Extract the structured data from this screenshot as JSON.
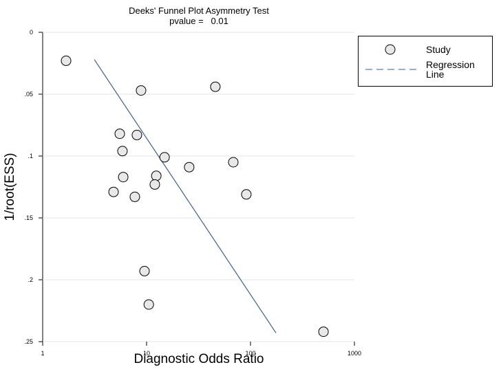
{
  "chart_data": {
    "type": "scatter",
    "title": "Deeks' Funnel Plot Asymmetry Test",
    "subtitle": "pvalue =   0.01",
    "x_label": "Diagnostic Odds Ratio",
    "y_label": "1/root(ESS)",
    "xscale": "log",
    "yreverse": true,
    "grid": true,
    "legend": "right",
    "xlim": [
      1,
      1000
    ],
    "xticks": [
      1,
      10,
      100,
      1000
    ],
    "ylim": [
      0,
      0.25
    ],
    "yticks": [
      0,
      {
        "value": 0.05,
        "label": ".05"
      },
      {
        "value": 0.1,
        "label": ".1"
      },
      {
        "value": 0.15,
        "label": ".15"
      },
      {
        "value": 0.2,
        "label": ".2"
      },
      {
        "value": 0.25,
        "label": ".25"
      }
    ],
    "series": [
      {
        "name": "Study",
        "color": "#e8e8e8",
        "x": [
          1.68,
          8.85,
          45.9,
          5.52,
          8.07,
          5.86,
          14.9,
          68.3,
          25.7,
          12.4,
          5.96,
          12.0,
          4.81,
          7.71,
          91.2,
          9.55,
          10.5,
          504
        ],
        "y": [
          0.023,
          0.047,
          0.044,
          0.082,
          0.083,
          0.096,
          0.101,
          0.105,
          0.109,
          0.116,
          0.117,
          0.123,
          0.129,
          0.133,
          0.131,
          0.193,
          0.22,
          0.242
        ]
      },
      {
        "name": "Regression Line",
        "color": "#3b5f8a",
        "x": [
          3.14,
          176
        ],
        "y": [
          0.022,
          0.243
        ]
      }
    ]
  }
}
